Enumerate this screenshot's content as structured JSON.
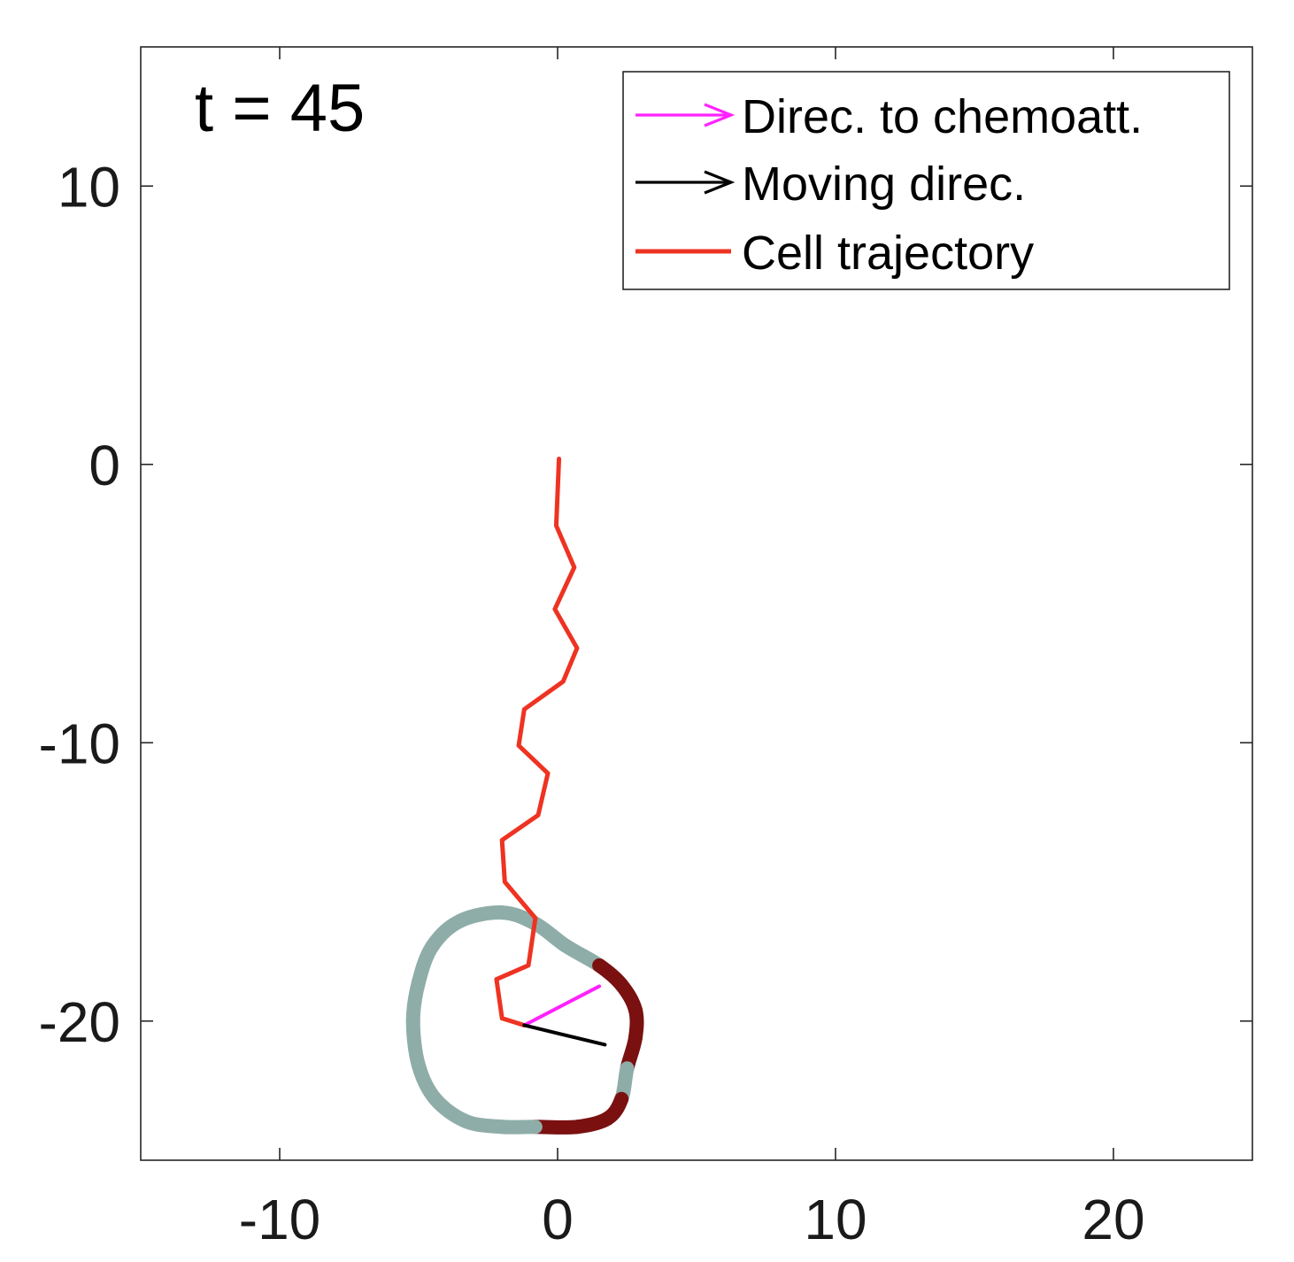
{
  "chart_data": {
    "type": "line",
    "annotation": "t = 45",
    "xlim": [
      -15,
      25
    ],
    "ylim": [
      -25,
      15
    ],
    "xticks": [
      -10,
      0,
      10,
      20
    ],
    "yticks": [
      -20,
      -10,
      0,
      10
    ],
    "grid": false,
    "legend_position": "top-right",
    "legend": [
      {
        "label": "Direc. to chemoatt.",
        "color": "#ff22ff",
        "style": "arrow"
      },
      {
        "label": "Moving direc.",
        "color": "#000000",
        "style": "arrow"
      },
      {
        "label": "Cell trajectory",
        "color": "#ee3322",
        "style": "line"
      }
    ],
    "series": [
      {
        "name": "Cell trajectory",
        "color": "#ee3322",
        "x": [
          0.05,
          0.0,
          -0.05,
          0.6,
          -0.1,
          0.7,
          0.2,
          -1.2,
          -1.4,
          -0.35,
          -0.7,
          -2.0,
          -1.9,
          -0.8,
          -1.05,
          -2.2,
          -2.0,
          -1.2
        ],
        "y": [
          0.2,
          -1.0,
          -2.2,
          -3.7,
          -5.2,
          -6.6,
          -7.8,
          -8.8,
          -10.1,
          -11.1,
          -12.6,
          -13.5,
          -15.0,
          -16.3,
          -18.0,
          -18.5,
          -19.9,
          -20.15
        ]
      },
      {
        "name": "Direc. to chemoatt.",
        "color": "#ff22ff",
        "x": [
          -1.2,
          1.5
        ],
        "y": [
          -20.15,
          -18.75
        ]
      },
      {
        "name": "Moving direc.",
        "color": "#000000",
        "x": [
          -1.2,
          1.7
        ],
        "y": [
          -20.15,
          -20.85
        ]
      },
      {
        "name": "Cell boundary",
        "color": "#8fada8",
        "highlight_color": "#7a1010",
        "x": [
          -2.0,
          -0.8,
          0.3,
          1.5,
          2.3,
          2.8,
          2.8,
          2.5,
          2.3,
          1.8,
          0.7,
          -0.8,
          -2.0,
          -3.3,
          -4.4,
          -5.0,
          -5.2,
          -5.0,
          -4.5,
          -3.5
        ],
        "y": [
          -16.1,
          -16.5,
          -17.3,
          -18.0,
          -18.7,
          -19.6,
          -20.6,
          -21.7,
          -22.8,
          -23.5,
          -23.8,
          -23.8,
          -23.8,
          -23.6,
          -22.8,
          -21.6,
          -20.0,
          -18.6,
          -17.3,
          -16.4
        ],
        "highlight": [
          3,
          4,
          5,
          6,
          8,
          9,
          10
        ]
      }
    ]
  }
}
